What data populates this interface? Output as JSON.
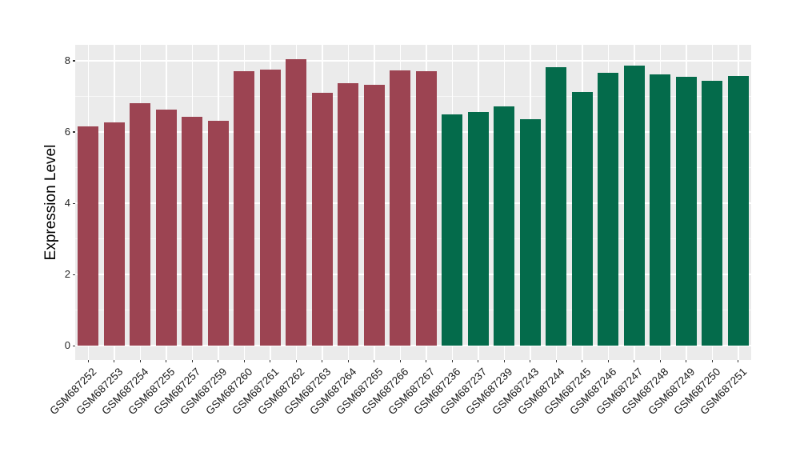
{
  "chart_data": {
    "type": "bar",
    "title": "",
    "xlabel": "",
    "ylabel": "Expression Level",
    "categories": [
      "GSM687252",
      "GSM687253",
      "GSM687254",
      "GSM687255",
      "GSM687257",
      "GSM687259",
      "GSM687260",
      "GSM687261",
      "GSM687262",
      "GSM687263",
      "GSM687264",
      "GSM687265",
      "GSM687266",
      "GSM687267",
      "GSM687236",
      "GSM687237",
      "GSM687239",
      "GSM687243",
      "GSM687244",
      "GSM687245",
      "GSM687246",
      "GSM687247",
      "GSM687248",
      "GSM687249",
      "GSM687250",
      "GSM687251"
    ],
    "values": [
      6.15,
      6.28,
      6.82,
      6.63,
      6.42,
      6.31,
      7.71,
      7.75,
      8.05,
      7.1,
      7.37,
      7.32,
      7.74,
      7.72,
      6.5,
      6.57,
      6.72,
      6.37,
      7.82,
      7.13,
      7.66,
      7.87,
      7.61,
      7.55,
      7.43,
      7.57
    ],
    "bar_groups": [
      0,
      0,
      0,
      0,
      0,
      0,
      0,
      0,
      0,
      0,
      0,
      0,
      0,
      0,
      1,
      1,
      1,
      1,
      1,
      1,
      1,
      1,
      1,
      1,
      1,
      1
    ],
    "group_colors": [
      "#9C4452",
      "#046B4B"
    ],
    "yticks": [
      "0",
      "2",
      "4",
      "6",
      "8"
    ],
    "ytick_values": [
      0,
      2,
      4,
      6,
      8
    ],
    "minor_ytick_values": [
      1,
      3,
      5,
      7
    ],
    "ylim": [
      -0.4,
      8.45
    ],
    "grid": true,
    "legend": false,
    "panel_bg": "#EBEBEB",
    "gridline_color": "#FFFFFF",
    "axis_text_color": "#1a1a1a",
    "x_label_angle_deg": 45
  }
}
